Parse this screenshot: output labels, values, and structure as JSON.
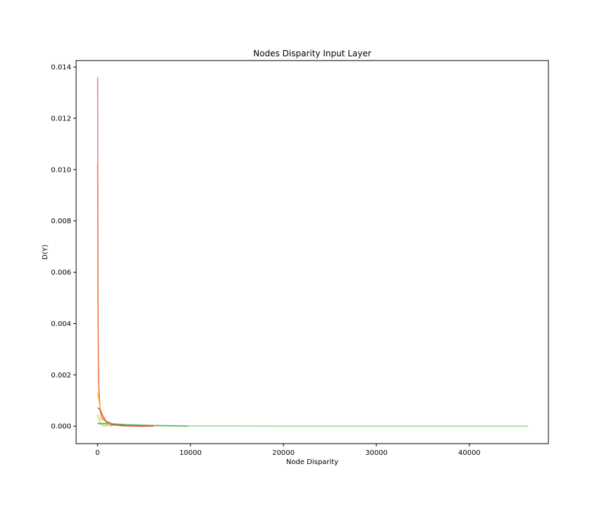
{
  "chart_data": {
    "type": "line",
    "title": "Nodes Disparity Input Layer",
    "xlabel": "Node Disparity",
    "ylabel": "D(Y)",
    "xlim": [
      -2300,
      48500
    ],
    "ylim": [
      -0.00068,
      0.01425
    ],
    "x_ticks": [
      0,
      10000,
      20000,
      30000,
      40000
    ],
    "y_ticks": [
      0.0,
      0.002,
      0.004,
      0.006,
      0.008,
      0.01,
      0.012,
      0.014
    ],
    "x_tick_labels": [
      "0",
      "10000",
      "20000",
      "30000",
      "40000"
    ],
    "y_tick_labels": [
      "0.000",
      "0.002",
      "0.004",
      "0.006",
      "0.008",
      "0.010",
      "0.012",
      "0.014"
    ],
    "grid": false,
    "series": [
      {
        "color": "#e8737b",
        "points": [
          [
            0,
            0.0136
          ],
          [
            20,
            0.0135
          ],
          [
            50,
            0.006
          ],
          [
            100,
            0.0018
          ],
          [
            300,
            0.0006
          ],
          [
            800,
            0.0002
          ],
          [
            2000,
            5e-05
          ],
          [
            6000,
            0.0
          ]
        ]
      },
      {
        "color": "#f07d3c",
        "points": [
          [
            0,
            0.0102
          ],
          [
            20,
            0.01
          ],
          [
            60,
            0.004
          ],
          [
            150,
            0.0012
          ],
          [
            400,
            0.0003
          ],
          [
            1500,
            5e-05
          ],
          [
            5000,
            0.0
          ]
        ]
      },
      {
        "color": "#f5c542",
        "points": [
          [
            0,
            0.0013
          ],
          [
            100,
            0.0011
          ],
          [
            300,
            0.0007
          ],
          [
            600,
            0.0003
          ],
          [
            1000,
            0.0001
          ],
          [
            2500,
            2e-05
          ],
          [
            6000,
            0.0
          ]
        ]
      },
      {
        "color": "#e83a3a",
        "points": [
          [
            0,
            0.00072
          ],
          [
            200,
            0.00068
          ],
          [
            500,
            0.00045
          ],
          [
            900,
            0.0002
          ],
          [
            1500,
            6e-05
          ],
          [
            3000,
            1e-05
          ],
          [
            6000,
            0.0
          ]
        ]
      },
      {
        "color": "#b8d93a",
        "points": [
          [
            0,
            0.00045
          ],
          [
            150,
            0.0003
          ],
          [
            400,
            8e-05
          ],
          [
            700,
            0.0
          ],
          [
            1000,
            4e-05
          ],
          [
            1600,
            0.0
          ]
        ]
      },
      {
        "color": "#8fce8f",
        "points": [
          [
            0,
            0.00012
          ],
          [
            1000,
            0.00011
          ],
          [
            3000,
            6e-05
          ],
          [
            6000,
            3e-05
          ],
          [
            10000,
            1e-05
          ],
          [
            20000,
            0.0
          ],
          [
            46300,
            0.0
          ]
        ]
      },
      {
        "color": "#4caf50",
        "points": [
          [
            0,
            0.0001
          ],
          [
            1500,
            9e-05
          ],
          [
            3500,
            5e-05
          ],
          [
            6500,
            2e-05
          ],
          [
            9700,
            0.0
          ]
        ]
      }
    ]
  }
}
